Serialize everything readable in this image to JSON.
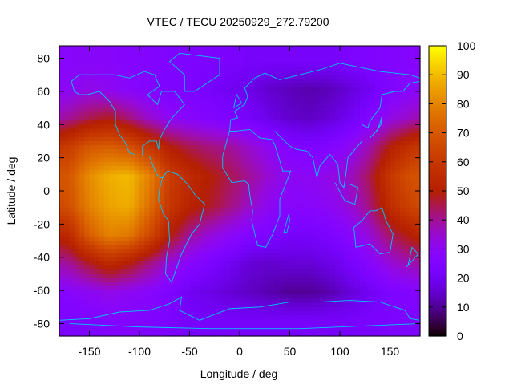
{
  "chart_data": {
    "type": "heatmap",
    "title": "VTEC / TECU 20250929_272.79200",
    "xlabel": "Longitude / deg",
    "ylabel": "Latitude / deg",
    "xlim": [
      -180,
      180
    ],
    "ylim": [
      -87.5,
      87.5
    ],
    "xticks": [
      -150,
      -100,
      -50,
      0,
      50,
      100,
      150
    ],
    "xtick_labels": [
      "-150",
      "-100",
      "-50",
      "0",
      "50",
      "100",
      "150"
    ],
    "yticks": [
      -80,
      -60,
      -40,
      -20,
      0,
      20,
      40,
      60,
      80
    ],
    "ytick_labels": [
      "-80",
      "-60",
      "-40",
      "-20",
      "0",
      "20",
      "40",
      "60",
      "80"
    ],
    "colorbar": {
      "range": [
        0,
        100
      ],
      "ticks": [
        0,
        10,
        20,
        30,
        40,
        50,
        60,
        70,
        80,
        90,
        100
      ],
      "tick_labels": [
        "0",
        "10",
        "20",
        "30",
        "40",
        "50",
        "60",
        "70",
        "80",
        "90",
        "100"
      ]
    },
    "coastline_color": "#00c8ff",
    "lon_centers": [
      -170,
      -150,
      -130,
      -110,
      -90,
      -70,
      -50,
      -30,
      -10,
      10,
      30,
      50,
      70,
      90,
      110,
      130,
      150,
      170
    ],
    "lat_centers": [
      78.75,
      61.25,
      43.75,
      26.25,
      8.75,
      -8.75,
      -26.25,
      -43.75,
      -61.25,
      -78.75
    ],
    "values": [
      [
        28,
        28,
        28,
        27,
        26,
        25,
        24,
        24,
        23,
        22,
        22,
        22,
        22,
        22,
        24,
        25,
        26,
        27
      ],
      [
        30,
        32,
        30,
        28,
        26,
        24,
        24,
        22,
        20,
        18,
        15,
        13,
        12,
        13,
        16,
        20,
        25,
        28
      ],
      [
        40,
        45,
        48,
        42,
        35,
        30,
        28,
        26,
        24,
        22,
        18,
        15,
        14,
        16,
        20,
        26,
        32,
        36
      ],
      [
        62,
        70,
        72,
        68,
        60,
        50,
        45,
        42,
        40,
        35,
        30,
        26,
        24,
        26,
        30,
        38,
        50,
        58
      ],
      [
        70,
        82,
        88,
        90,
        80,
        62,
        55,
        50,
        45,
        40,
        34,
        30,
        30,
        32,
        36,
        45,
        60,
        68
      ],
      [
        68,
        80,
        86,
        88,
        76,
        60,
        52,
        48,
        42,
        36,
        30,
        28,
        28,
        30,
        34,
        42,
        56,
        64
      ],
      [
        55,
        72,
        80,
        78,
        66,
        50,
        40,
        34,
        30,
        26,
        24,
        22,
        22,
        24,
        28,
        34,
        44,
        50
      ],
      [
        40,
        48,
        55,
        50,
        42,
        34,
        28,
        24,
        20,
        16,
        15,
        16,
        16,
        18,
        22,
        28,
        34,
        38
      ],
      [
        28,
        30,
        32,
        30,
        28,
        24,
        20,
        18,
        16,
        14,
        12,
        10,
        10,
        12,
        16,
        20,
        24,
        26
      ],
      [
        24,
        24,
        26,
        26,
        25,
        24,
        22,
        22,
        22,
        22,
        22,
        22,
        22,
        22,
        22,
        23,
        24,
        24
      ]
    ]
  }
}
